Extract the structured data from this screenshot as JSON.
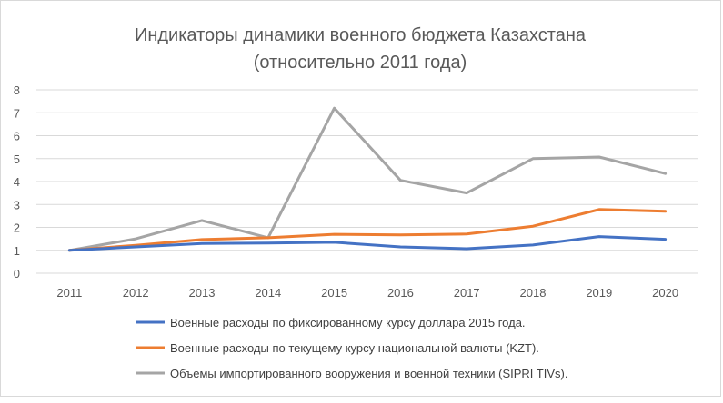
{
  "chart_data": {
    "type": "line",
    "title_line1": "Индикаторы динамики военного бюджета Казахстана",
    "title_line2": "(относительно 2011 года)",
    "categories": [
      "2011",
      "2012",
      "2013",
      "2014",
      "2015",
      "2016",
      "2017",
      "2018",
      "2019",
      "2020"
    ],
    "ylim": [
      0,
      8
    ],
    "yticks": [
      0,
      1,
      2,
      3,
      4,
      5,
      6,
      7,
      8
    ],
    "grid": true,
    "legend_placement": "bottom",
    "series": [
      {
        "name": "Военные расходы по фиксированному курсу доллара 2015  года.",
        "color": "#4472C4",
        "values": [
          1.0,
          1.15,
          1.3,
          1.32,
          1.35,
          1.15,
          1.07,
          1.23,
          1.6,
          1.48
        ]
      },
      {
        "name": "Военные расходы по текущему курсу национальной валюты (KZT).",
        "color": "#ED7D31",
        "values": [
          1.0,
          1.22,
          1.47,
          1.55,
          1.7,
          1.67,
          1.71,
          2.05,
          2.78,
          2.7
        ]
      },
      {
        "name": "Объемы импортированного вооружения и военной техники (SIPRI TIVs).",
        "color": "#A5A5A5",
        "values": [
          1.0,
          1.5,
          2.3,
          1.55,
          7.2,
          4.05,
          3.5,
          5.0,
          5.07,
          4.35
        ]
      }
    ]
  }
}
